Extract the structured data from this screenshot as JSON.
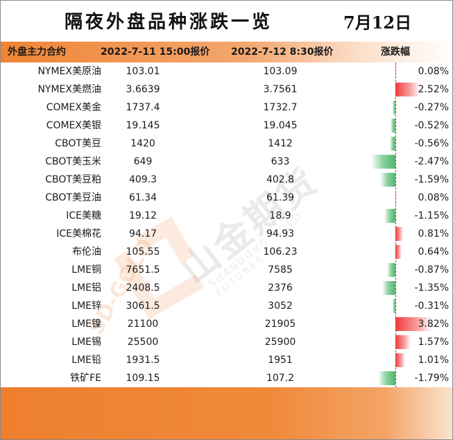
{
  "title": "隔夜外盘品种涨跌一览",
  "date": "7月12日",
  "header": {
    "name": "外盘主力合约",
    "price1": "2022-7-11 15:00报价",
    "price2": "2022-7-12 8:30报价",
    "change": "涨跌幅"
  },
  "rows": [
    {
      "name": "NYMEX美原油",
      "p1": "103.01",
      "p2": "103.09",
      "chg": "0.08%",
      "v": 0.08
    },
    {
      "name": "NYMEX美燃油",
      "p1": "3.6639",
      "p2": "3.7561",
      "chg": "2.52%",
      "v": 2.52
    },
    {
      "name": "COMEX美金",
      "p1": "1737.4",
      "p2": "1732.7",
      "chg": "-0.27%",
      "v": -0.27
    },
    {
      "name": "COMEX美银",
      "p1": "19.145",
      "p2": "19.045",
      "chg": "-0.52%",
      "v": -0.52
    },
    {
      "name": "CBOT美豆",
      "p1": "1420",
      "p2": "1412",
      "chg": "-0.56%",
      "v": -0.56
    },
    {
      "name": "CBOT美玉米",
      "p1": "649",
      "p2": "633",
      "chg": "-2.47%",
      "v": -2.47
    },
    {
      "name": "CBOT美豆粕",
      "p1": "409.3",
      "p2": "402.8",
      "chg": "-1.59%",
      "v": -1.59
    },
    {
      "name": "CBOT美豆油",
      "p1": "61.34",
      "p2": "61.39",
      "chg": "0.08%",
      "v": 0.08
    },
    {
      "name": "ICE美糖",
      "p1": "19.12",
      "p2": "18.9",
      "chg": "-1.15%",
      "v": -1.15
    },
    {
      "name": "ICE美棉花",
      "p1": "94.17",
      "p2": "94.93",
      "chg": "0.81%",
      "v": 0.81
    },
    {
      "name": "布伦油",
      "p1": "105.55",
      "p2": "106.23",
      "chg": "0.64%",
      "v": 0.64
    },
    {
      "name": "LME铜",
      "p1": "7651.5",
      "p2": "7585",
      "chg": "-0.87%",
      "v": -0.87
    },
    {
      "name": "LME铝",
      "p1": "2408.5",
      "p2": "2376",
      "chg": "-1.35%",
      "v": -1.35
    },
    {
      "name": "LME锌",
      "p1": "3061.5",
      "p2": "3052",
      "chg": "-0.31%",
      "v": -0.31
    },
    {
      "name": "LME镍",
      "p1": "21100",
      "p2": "21905",
      "chg": "3.82%",
      "v": 3.82
    },
    {
      "name": "LME锡",
      "p1": "25500",
      "p2": "25900",
      "chg": "1.57%",
      "v": 1.57
    },
    {
      "name": "LME铅",
      "p1": "1931.5",
      "p2": "1951",
      "chg": "1.01%",
      "v": 1.01
    },
    {
      "name": "铁矿FE",
      "p1": "109.15",
      "p2": "107.2",
      "chg": "-1.79%",
      "v": -1.79
    }
  ],
  "colors": {
    "accent": "#ee8534",
    "positive": "#f23a3a",
    "negative": "#4fb66e"
  },
  "watermark": {
    "cn": "山金期货",
    "en": "SHANDONG GOLD FUTURES",
    "logo_text": "SD-GOLD"
  }
}
